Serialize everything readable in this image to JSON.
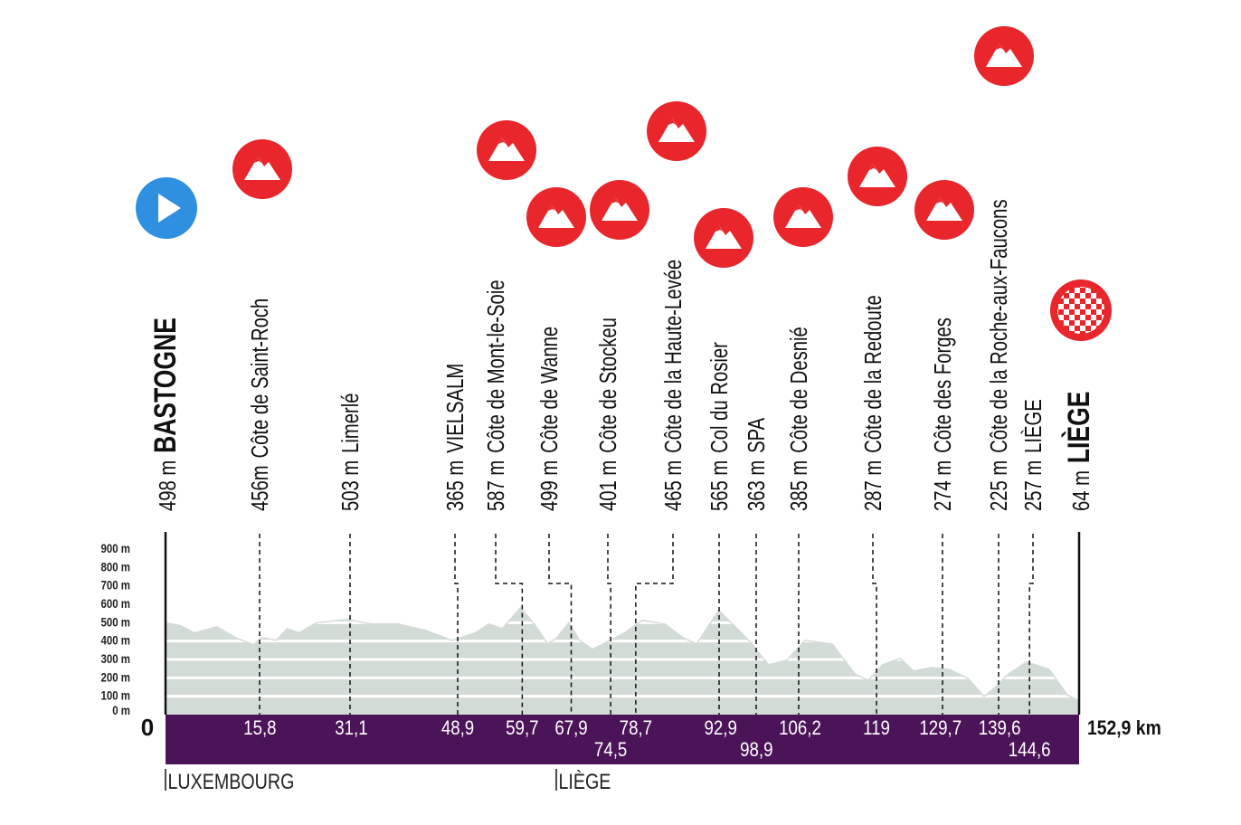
{
  "chart_data": {
    "type": "area",
    "x": [
      0,
      2.6,
      4.8,
      8.6,
      11.7,
      14.7,
      16.2,
      18.5,
      20.4,
      22.3,
      25.3,
      30.6,
      34.4,
      38.9,
      43.5,
      48.0,
      51.8,
      54.1,
      56.4,
      59.4,
      61.7,
      64.0,
      65.5,
      67.5,
      69.3,
      71.5,
      73.8,
      76.8,
      79.8,
      83.6,
      86.6,
      88.9,
      92.6,
      94.9,
      97.9,
      100.9,
      104.0,
      107.0,
      111.6,
      115.4,
      117.6,
      120.0,
      123.0,
      125.2,
      128.2,
      131.2,
      134.3,
      137.0,
      138.8,
      141.1,
      144.1,
      147.9,
      150.9,
      152.9
    ],
    "values": [
      500,
      483,
      444,
      478,
      419,
      380,
      419,
      404,
      468,
      444,
      500,
      518,
      493,
      493,
      458,
      404,
      444,
      493,
      468,
      582,
      493,
      384,
      419,
      500,
      404,
      355,
      394,
      444,
      513,
      493,
      419,
      384,
      567,
      493,
      394,
      271,
      296,
      404,
      384,
      222,
      187,
      271,
      306,
      237,
      256,
      246,
      197,
      99,
      148,
      222,
      286,
      246,
      108,
      74
    ],
    "color": "#d3dbd6",
    "xlim": [
      0,
      152.9
    ],
    "xticks": [
      {
        "value": 0,
        "label": "0"
      },
      {
        "value": 152.9,
        "label": "152,9 km"
      }
    ],
    "ylim": [
      0,
      900
    ],
    "yticks": [
      {
        "value": 0,
        "label": "0 m"
      },
      {
        "value": 100,
        "label": "100 m"
      },
      {
        "value": 200,
        "label": "200 m"
      },
      {
        "value": 300,
        "label": "300 m"
      },
      {
        "value": 400,
        "label": "400 m"
      },
      {
        "value": 500,
        "label": "500 m"
      },
      {
        "value": 600,
        "label": "600 m"
      },
      {
        "value": 700,
        "label": "700 m"
      },
      {
        "value": 800,
        "label": "800 m"
      },
      {
        "value": 900,
        "label": "900 m"
      }
    ],
    "grid": true,
    "band_color": "#4c1458",
    "waypoints": [
      {
        "name": "BASTOGNE",
        "altitude": {
          "value": 498,
          "label": "498 m"
        },
        "climb": false
      },
      {
        "name": "Côte de Saint-Roch",
        "altitude": {
          "value": 456,
          "label": "456m"
        },
        "km": 15.8,
        "km_label": "15,8",
        "climb": true
      },
      {
        "name": "Limerlé",
        "altitude": {
          "value": 503,
          "label": "503 m"
        },
        "km": 31.1,
        "km_label": "31,1",
        "climb": false
      },
      {
        "name": "VIELSALM",
        "altitude": {
          "value": 365,
          "label": "365 m"
        },
        "km": 48.9,
        "km_label": "48,9",
        "climb": false
      },
      {
        "name": "Côte de Mont-le-Soie",
        "altitude": {
          "value": 587,
          "label": "587 m"
        },
        "km": 59.7,
        "km_label": "59,7",
        "climb": true
      },
      {
        "name": "Côte de Wanne",
        "altitude": {
          "value": 499,
          "label": "499 m"
        },
        "km": 67.9,
        "km_label": "67,9",
        "climb": true
      },
      {
        "name": "Côte de Stockeu",
        "altitude": {
          "value": 401,
          "label": "401 m"
        },
        "km": 74.5,
        "km_label": "74,5",
        "climb": true
      },
      {
        "name": "Côte de la Haute-Levée",
        "altitude": {
          "value": 465,
          "label": "465 m"
        },
        "km": 78.7,
        "km_label": "78,7",
        "climb": true
      },
      {
        "name": "Col du Rosier",
        "altitude": {
          "value": 565,
          "label": "565 m"
        },
        "km": 92.9,
        "km_label": "92,9",
        "climb": true
      },
      {
        "name": "SPA",
        "altitude": {
          "value": 363,
          "label": "363 m"
        },
        "km": 98.9,
        "km_label": "98,9",
        "climb": false
      },
      {
        "name": "Côte de Desnié",
        "altitude": {
          "value": 385,
          "label": "385 m"
        },
        "km": 106.2,
        "km_label": "106,2",
        "climb": true
      },
      {
        "name": "Côte de la Redoute",
        "altitude": {
          "value": 287,
          "label": "287 m"
        },
        "km": 119,
        "km_label": "119",
        "climb": true
      },
      {
        "name": "Côte des Forges",
        "altitude": {
          "value": 274,
          "label": "274 m"
        },
        "km": 129.7,
        "km_label": "129,7",
        "climb": true
      },
      {
        "name": "Côte de la Roche-aux-Faucons",
        "altitude": {
          "value": 225,
          "label": "225 m"
        },
        "km": 139.6,
        "km_label": "139,6",
        "climb": true
      },
      {
        "name": "LIÈGE",
        "altitude": {
          "value": 257,
          "label": "257 m"
        },
        "km": 144.6,
        "km_label": "144,6",
        "climb": false
      },
      {
        "name": "LIÈGE",
        "altitude": {
          "value": 64,
          "label": "64 m"
        },
        "climb": false
      }
    ],
    "regions": [
      "LUXEMBOURG",
      "LIÈGE"
    ]
  }
}
